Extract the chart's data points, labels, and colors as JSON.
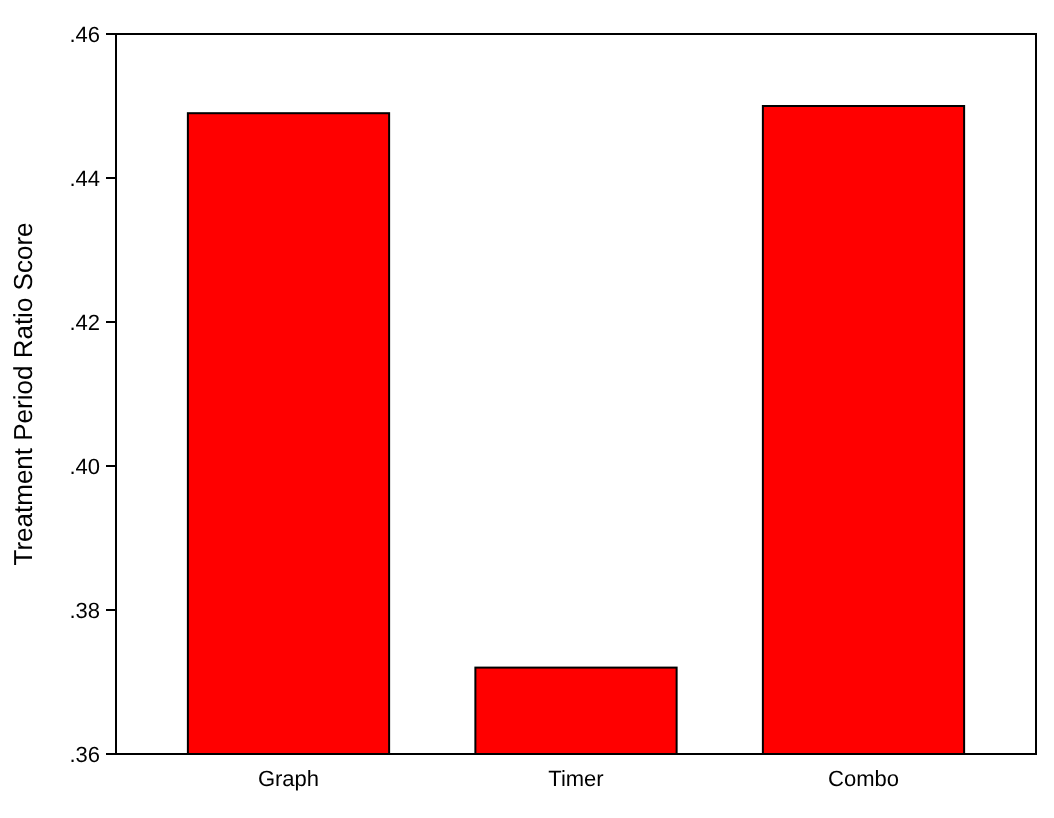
{
  "chart_data": {
    "type": "bar",
    "ylabel": "Treatment Period Ratio Score",
    "categories": [
      "Graph",
      "Timer",
      "Combo"
    ],
    "values": [
      0.449,
      0.372,
      0.45
    ],
    "color": "#ff0000",
    "ylim": [
      0.36,
      0.46
    ],
    "yticks": [
      {
        "value": 0.36,
        "label": ".36"
      },
      {
        "value": 0.38,
        "label": ".38"
      },
      {
        "value": 0.4,
        "label": ".40"
      },
      {
        "value": 0.42,
        "label": ".42"
      },
      {
        "value": 0.44,
        "label": ".44"
      },
      {
        "value": 0.46,
        "label": ".46"
      }
    ]
  }
}
